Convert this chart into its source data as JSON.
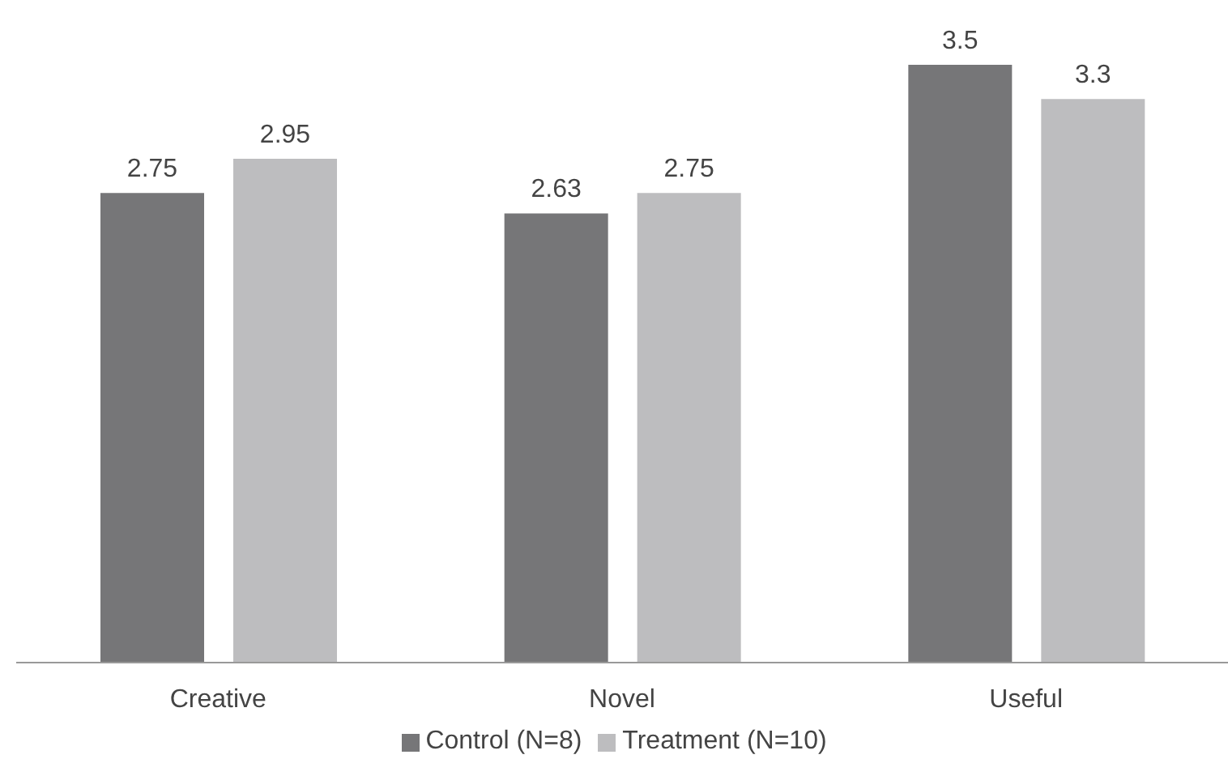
{
  "chart_data": {
    "type": "bar",
    "categories": [
      "Creative",
      "Novel",
      "Useful"
    ],
    "series": [
      {
        "name": "Control (N=8)",
        "color": "#767678",
        "values": [
          2.75,
          2.63,
          3.5
        ]
      },
      {
        "name": "Treatment (N=10)",
        "color": "#bdbdbf",
        "values": [
          2.95,
          2.75,
          3.3
        ]
      }
    ],
    "data_labels": true,
    "legend": "bottom",
    "grid": false
  }
}
